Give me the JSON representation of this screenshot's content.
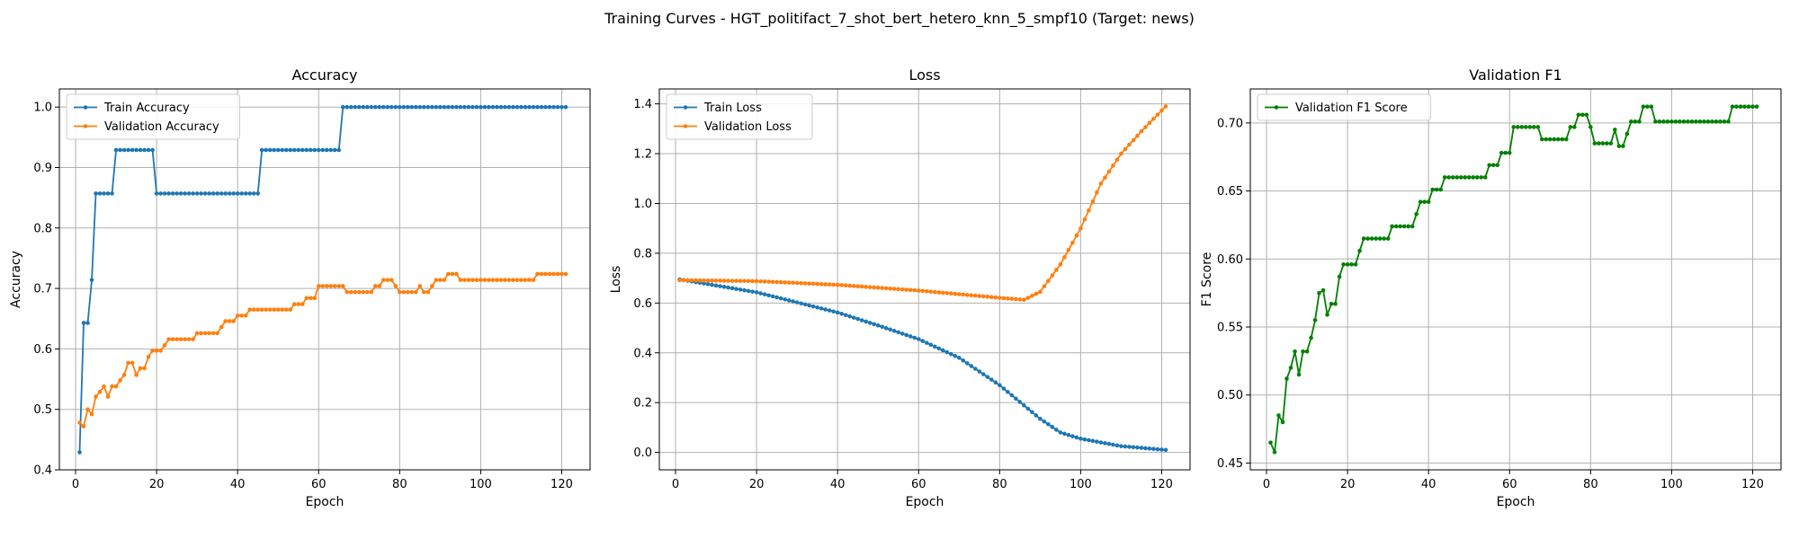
{
  "figure_title": "Training Curves - HGT_politifact_7_shot_bert_hetero_knn_5_smpf10 (Target: news)",
  "chart_data": [
    {
      "type": "line",
      "title": "Accuracy",
      "xlabel": "Epoch",
      "ylabel": "Accuracy",
      "xlim": [
        -4,
        127
      ],
      "ylim": [
        0.4,
        1.03
      ],
      "xticks": [
        0,
        20,
        40,
        60,
        80,
        100,
        120
      ],
      "yticks": [
        0.4,
        0.5,
        0.6,
        0.7,
        0.8,
        0.9,
        1.0
      ],
      "ytick_decimals": 1,
      "grid": true,
      "legend_position": "top-left",
      "series": [
        {
          "name": "Train Accuracy",
          "color": "#1f77b4",
          "segments": [
            {
              "from": 1,
              "values": [
                0.429,
                0.643,
                0.643,
                0.714,
                0.857,
                0.857,
                0.857,
                0.857,
                0.857
              ]
            },
            {
              "from": 10,
              "to": 19,
              "value": 0.929
            },
            {
              "from": 20,
              "to": 45,
              "value": 0.857
            },
            {
              "from": 46,
              "to": 65,
              "value": 0.929
            },
            {
              "from": 66,
              "to": 121,
              "value": 1.0
            }
          ]
        },
        {
          "name": "Validation Accuracy",
          "color": "#ff7f0e",
          "segments": [
            {
              "from": 1,
              "values": [
                0.478,
                0.472,
                0.5,
                0.492,
                0.521,
                0.529,
                0.538,
                0.521,
                0.538,
                0.538,
                0.548,
                0.557,
                0.577,
                0.577,
                0.557,
                0.568,
                0.568,
                0.587,
                0.597,
                0.597,
                0.597,
                0.606,
                0.616,
                0.616,
                0.616,
                0.616,
                0.616,
                0.616,
                0.616,
                0.626,
                0.626,
                0.626,
                0.626,
                0.626,
                0.626,
                0.636,
                0.646,
                0.646,
                0.646,
                0.655,
                0.655,
                0.655,
                0.665,
                0.665,
                0.665,
                0.665,
                0.665,
                0.665,
                0.665,
                0.665,
                0.665,
                0.665,
                0.665,
                0.674,
                0.674,
                0.674,
                0.684,
                0.684,
                0.684,
                0.704,
                0.704,
                0.704,
                0.704,
                0.704,
                0.704,
                0.704,
                0.694,
                0.694,
                0.694,
                0.694,
                0.694,
                0.694,
                0.694,
                0.704,
                0.704,
                0.714,
                0.714,
                0.714,
                0.704,
                0.694,
                0.694,
                0.694,
                0.694,
                0.694,
                0.704,
                0.694,
                0.694,
                0.704,
                0.714,
                0.714,
                0.714,
                0.724,
                0.724,
                0.724,
                0.714
              ]
            },
            {
              "from": 96,
              "to": 113,
              "value": 0.714
            },
            {
              "from": 114,
              "to": 121,
              "value": 0.724
            }
          ]
        }
      ]
    },
    {
      "type": "line",
      "title": "Loss",
      "xlabel": "Epoch",
      "ylabel": "Loss",
      "xlim": [
        -4,
        127
      ],
      "ylim": [
        -0.07,
        1.46
      ],
      "xticks": [
        0,
        20,
        40,
        60,
        80,
        100,
        120
      ],
      "yticks": [
        0.0,
        0.2,
        0.4,
        0.6,
        0.8,
        1.0,
        1.2,
        1.4
      ],
      "ytick_decimals": 1,
      "grid": true,
      "legend_position": "top-left",
      "series": [
        {
          "name": "Train Loss",
          "color": "#1f77b4",
          "points": [
            [
              1,
              0.695
            ],
            [
              20,
              0.643
            ],
            [
              40,
              0.562
            ],
            [
              50,
              0.51
            ],
            [
              60,
              0.455
            ],
            [
              70,
              0.38
            ],
            [
              80,
              0.27
            ],
            [
              90,
              0.135
            ],
            [
              95,
              0.08
            ],
            [
              100,
              0.055
            ],
            [
              110,
              0.025
            ],
            [
              121,
              0.01
            ]
          ]
        },
        {
          "name": "Validation Loss",
          "color": "#ff7f0e",
          "points": [
            [
              1,
              0.692
            ],
            [
              20,
              0.688
            ],
            [
              40,
              0.673
            ],
            [
              60,
              0.65
            ],
            [
              80,
              0.621
            ],
            [
              86,
              0.613
            ],
            [
              90,
              0.645
            ],
            [
              95,
              0.755
            ],
            [
              100,
              0.9
            ],
            [
              105,
              1.08
            ],
            [
              110,
              1.2
            ],
            [
              115,
              1.29
            ],
            [
              121,
              1.39
            ]
          ]
        }
      ]
    },
    {
      "type": "line",
      "title": "Validation F1",
      "xlabel": "Epoch",
      "ylabel": "F1 Score",
      "xlim": [
        -4,
        127
      ],
      "ylim": [
        0.445,
        0.725
      ],
      "xticks": [
        0,
        20,
        40,
        60,
        80,
        100,
        120
      ],
      "yticks": [
        0.45,
        0.5,
        0.55,
        0.6,
        0.65,
        0.7
      ],
      "ytick_decimals": 2,
      "grid": true,
      "legend_position": "top-left",
      "series": [
        {
          "name": "Validation F1 Score",
          "color": "#008000",
          "segments": [
            {
              "from": 1,
              "values": [
                0.465,
                0.458,
                0.485,
                0.48,
                0.512,
                0.52,
                0.532,
                0.515,
                0.532,
                0.532,
                0.542,
                0.555,
                0.575,
                0.577,
                0.559,
                0.567,
                0.567,
                0.587,
                0.596,
                0.596,
                0.596,
                0.596,
                0.606,
                0.615,
                0.615,
                0.615,
                0.615,
                0.615,
                0.615,
                0.615,
                0.624,
                0.624,
                0.624,
                0.624,
                0.624,
                0.624,
                0.633,
                0.642,
                0.642,
                0.642,
                0.651,
                0.651,
                0.651,
                0.66,
                0.66,
                0.66,
                0.66,
                0.66,
                0.66,
                0.66,
                0.66,
                0.66,
                0.66,
                0.66,
                0.669,
                0.669,
                0.669,
                0.678,
                0.678,
                0.678,
                0.697,
                0.697,
                0.697,
                0.697,
                0.697,
                0.697,
                0.697,
                0.688,
                0.688,
                0.688,
                0.688,
                0.688,
                0.688,
                0.688,
                0.697,
                0.697,
                0.706,
                0.706,
                0.706,
                0.697,
                0.685,
                0.685,
                0.685,
                0.685,
                0.685,
                0.695,
                0.683,
                0.683,
                0.692,
                0.701,
                0.701,
                0.701,
                0.712,
                0.712,
                0.712,
                0.701
              ]
            },
            {
              "from": 97,
              "to": 114,
              "value": 0.701
            },
            {
              "from": 115,
              "to": 121,
              "value": 0.712
            }
          ]
        }
      ]
    }
  ]
}
